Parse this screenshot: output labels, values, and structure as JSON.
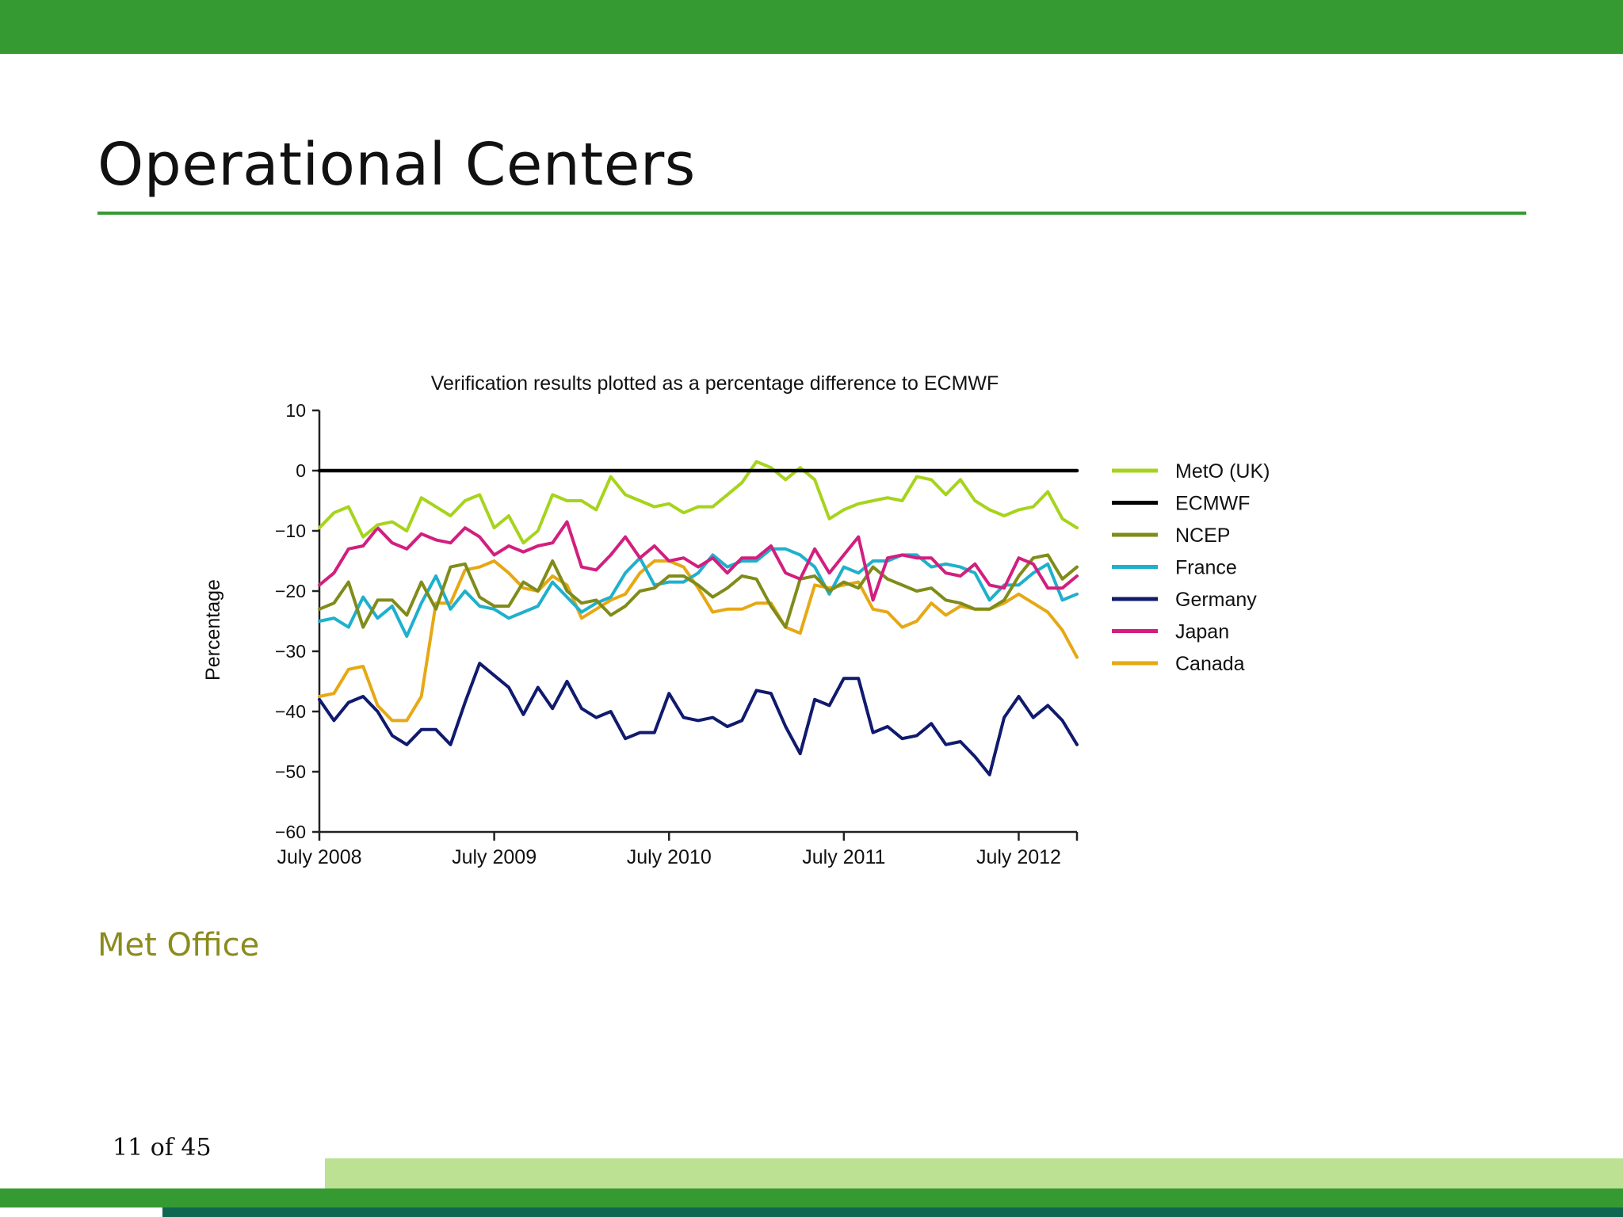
{
  "slide": {
    "title": "Operational Centers",
    "source": "Met Office",
    "page_number": "11 of 45"
  },
  "colors": {
    "header": "#369a33",
    "footer_light": "#bce193",
    "footer_dark": "#0f6651",
    "source_text": "#8b8b1e"
  },
  "chart_data": {
    "type": "line",
    "title": "Verification results plotted as a percentage difference to ECMWF",
    "xlabel": "",
    "ylabel": "Percentage",
    "ylim": [
      -60,
      10
    ],
    "yticks": [
      10,
      0,
      -10,
      -20,
      -30,
      -40,
      -50,
      -60
    ],
    "ytick_labels": [
      "10",
      "0",
      "−10",
      "−20",
      "−30",
      "−40",
      "−50",
      "−60"
    ],
    "xlim": [
      0,
      52
    ],
    "xticks": [
      0,
      12,
      24,
      36,
      48
    ],
    "xtick_labels": [
      "July 2008",
      "July 2009",
      "July 2010",
      "July 2011",
      "July 2012"
    ],
    "legend_position": "right",
    "grid": false,
    "series": [
      {
        "name": "MetO (UK)",
        "color": "#a6d41c",
        "values": [
          -9.5,
          -7,
          -6,
          -11,
          -9,
          -8.5,
          -10,
          -4.5,
          -6,
          -7.5,
          -5,
          -4,
          -9.5,
          -7.5,
          -12,
          -10,
          -4,
          -5,
          -5,
          -6.5,
          -1,
          -4,
          -5,
          -6,
          -5.5,
          -7,
          -6,
          -6,
          -4,
          -2,
          1.5,
          0.5,
          -1.5,
          0.5,
          -1.5,
          -8,
          -6.5,
          -5.5,
          -5,
          -4.5,
          -5,
          -1,
          -1.5,
          -4,
          -1.5,
          -5,
          -6.5,
          -7.5,
          -6.5,
          -6,
          -3.5,
          -8,
          -9.5
        ]
      },
      {
        "name": "ECMWF",
        "color": "#000000",
        "values": [
          0,
          0,
          0,
          0,
          0,
          0,
          0,
          0,
          0,
          0,
          0,
          0,
          0,
          0,
          0,
          0,
          0,
          0,
          0,
          0,
          0,
          0,
          0,
          0,
          0,
          0,
          0,
          0,
          0,
          0,
          0,
          0,
          0,
          0,
          0,
          0,
          0,
          0,
          0,
          0,
          0,
          0,
          0,
          0,
          0,
          0,
          0,
          0,
          0,
          0,
          0,
          0,
          0
        ]
      },
      {
        "name": "NCEP",
        "color": "#7f8c1a",
        "values": [
          -23,
          -22,
          -18.5,
          -26,
          -21.5,
          -21.5,
          -24,
          -18.5,
          -23,
          -16,
          -15.5,
          -21,
          -22.5,
          -22.5,
          -18.5,
          -20,
          -15,
          -20,
          -22,
          -21.5,
          -24,
          -22.5,
          -20,
          -19.5,
          -17.5,
          -17.5,
          -19,
          -21,
          -19.5,
          -17.5,
          -18,
          -22.5,
          -26,
          -18,
          -17.5,
          -20,
          -18.5,
          -19.5,
          -16,
          -18,
          -19,
          -20,
          -19.5,
          -21.5,
          -22,
          -23,
          -23,
          -21.5,
          -17.5,
          -14.5,
          -14,
          -18,
          -16
        ]
      },
      {
        "name": "France",
        "color": "#1fb0cc",
        "values": [
          -25,
          -24.5,
          -26,
          -21,
          -24.5,
          -22.5,
          -27.5,
          -22,
          -17.5,
          -23,
          -20,
          -22.5,
          -23,
          -24.5,
          -23.5,
          -22.5,
          -18.5,
          -21,
          -23.5,
          -22,
          -21,
          -17,
          -14.5,
          -19,
          -18.5,
          -18.5,
          -17,
          -14,
          -16,
          -15,
          -15,
          -13,
          -13,
          -14,
          -16,
          -20.5,
          -16,
          -17,
          -15,
          -15,
          -14,
          -14,
          -16,
          -15.5,
          -16,
          -17,
          -21.5,
          -19,
          -19,
          -17,
          -15.5,
          -21.5,
          -20.5
        ]
      },
      {
        "name": "Germany",
        "color": "#101a6e",
        "values": [
          -38,
          -41.5,
          -38.5,
          -37.5,
          -40,
          -44,
          -45.5,
          -43,
          -43,
          -45.5,
          -38.5,
          -32,
          -34,
          -36,
          -40.5,
          -36,
          -39.5,
          -35,
          -39.5,
          -41,
          -40,
          -44.5,
          -43.5,
          -43.5,
          -37,
          -41,
          -41.5,
          -41,
          -42.5,
          -41.5,
          -36.5,
          -37,
          -42.5,
          -47,
          -38,
          -39,
          -34.5,
          -34.5,
          -43.5,
          -42.5,
          -44.5,
          -44,
          -42,
          -45.5,
          -45,
          -47.5,
          -50.5,
          -41,
          -37.5,
          -41,
          -39,
          -41.5,
          -45.5
        ]
      },
      {
        "name": "Japan",
        "color": "#d21f7f",
        "values": [
          -19,
          -17,
          -13,
          -12.5,
          -9.5,
          -12,
          -13,
          -10.5,
          -11.5,
          -12,
          -9.5,
          -11,
          -14,
          -12.5,
          -13.5,
          -12.5,
          -12,
          -8.5,
          -16,
          -16.5,
          -14,
          -11,
          -14.5,
          -12.5,
          -15,
          -14.5,
          -16,
          -14.5,
          -17,
          -14.5,
          -14.5,
          -12.5,
          -17,
          -18,
          -13,
          -17,
          -14,
          -11,
          -21.5,
          -14.5,
          -14,
          -14.5,
          -14.5,
          -17,
          -17.5,
          -15.5,
          -19,
          -19.5,
          -14.5,
          -15.5,
          -19.5,
          -19.5,
          -17.5
        ]
      },
      {
        "name": "Canada",
        "color": "#e6a814",
        "values": [
          -37.5,
          -37,
          -33,
          -32.5,
          -39,
          -41.5,
          -41.5,
          -37.5,
          -22,
          -22,
          -16.5,
          -16,
          -15,
          -17,
          -19.5,
          -20,
          -17.5,
          -19,
          -24.5,
          -23,
          -21.5,
          -20.5,
          -17,
          -15,
          -15,
          -16,
          -19.5,
          -23.5,
          -23,
          -23,
          -22,
          -22,
          -26,
          -27,
          -19,
          -19.5,
          -19,
          -18.5,
          -23,
          -23.5,
          -26,
          -25,
          -22,
          -24,
          -22.5,
          -23,
          -23,
          -22,
          -20.5,
          -22,
          -23.5,
          -26.5,
          -31
        ]
      }
    ]
  }
}
